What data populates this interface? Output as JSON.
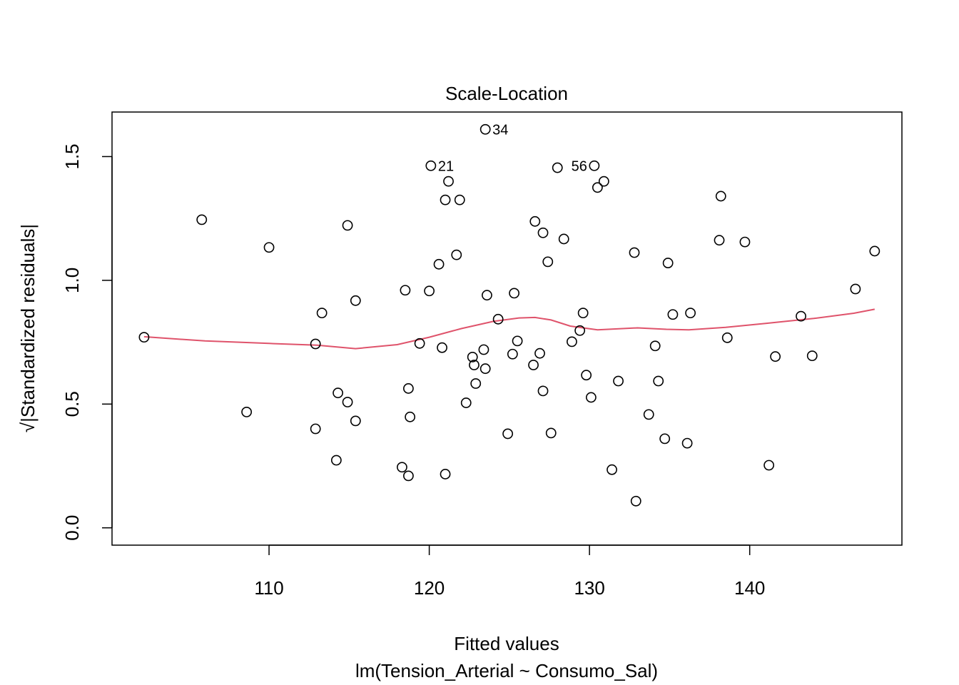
{
  "chart_data": {
    "type": "scatter",
    "title": "Scale-Location",
    "xlabel": "Fitted values",
    "xlabel_sub": "lm(Tension_Arterial ~ Consumo_Sal)",
    "ylabel": "√|Standardized residuals|",
    "xlim": [
      100.2,
      149.5
    ],
    "ylim": [
      -0.07,
      1.68
    ],
    "x_ticks": [
      110,
      120,
      130,
      140
    ],
    "x_tick_labels": [
      "110",
      "120",
      "130",
      "140"
    ],
    "y_ticks": [
      0.0,
      0.5,
      1.0,
      1.5
    ],
    "y_tick_labels": [
      "0.0",
      "0.5",
      "1.0",
      "1.5"
    ],
    "grid": false,
    "colors": {
      "points": "#000000",
      "smooth": "#DF536B",
      "frame": "#000000"
    },
    "points": [
      {
        "x": 102.2,
        "y": 0.77
      },
      {
        "x": 105.8,
        "y": 1.245
      },
      {
        "x": 108.6,
        "y": 0.468
      },
      {
        "x": 110.0,
        "y": 1.133
      },
      {
        "x": 112.9,
        "y": 0.743
      },
      {
        "x": 112.9,
        "y": 0.4
      },
      {
        "x": 113.3,
        "y": 0.868
      },
      {
        "x": 114.2,
        "y": 0.273
      },
      {
        "x": 114.3,
        "y": 0.545
      },
      {
        "x": 114.9,
        "y": 0.508
      },
      {
        "x": 114.9,
        "y": 1.222
      },
      {
        "x": 115.4,
        "y": 0.918
      },
      {
        "x": 115.4,
        "y": 0.432
      },
      {
        "x": 118.3,
        "y": 0.245
      },
      {
        "x": 118.5,
        "y": 0.96
      },
      {
        "x": 118.7,
        "y": 0.563
      },
      {
        "x": 118.7,
        "y": 0.21
      },
      {
        "x": 118.8,
        "y": 0.448
      },
      {
        "x": 119.4,
        "y": 0.745
      },
      {
        "x": 120.0,
        "y": 0.957
      },
      {
        "x": 120.1,
        "y": 1.463,
        "label": "21"
      },
      {
        "x": 120.6,
        "y": 1.065
      },
      {
        "x": 120.8,
        "y": 0.728
      },
      {
        "x": 121.0,
        "y": 1.325
      },
      {
        "x": 121.0,
        "y": 0.217
      },
      {
        "x": 121.2,
        "y": 1.4
      },
      {
        "x": 121.7,
        "y": 1.103
      },
      {
        "x": 121.9,
        "y": 1.325
      },
      {
        "x": 122.3,
        "y": 0.505
      },
      {
        "x": 122.7,
        "y": 0.69
      },
      {
        "x": 122.8,
        "y": 0.658
      },
      {
        "x": 122.9,
        "y": 0.583
      },
      {
        "x": 123.4,
        "y": 0.72
      },
      {
        "x": 123.5,
        "y": 1.61,
        "label": "34"
      },
      {
        "x": 123.5,
        "y": 0.643
      },
      {
        "x": 123.6,
        "y": 0.94
      },
      {
        "x": 124.3,
        "y": 0.843
      },
      {
        "x": 124.9,
        "y": 0.38
      },
      {
        "x": 125.2,
        "y": 0.702
      },
      {
        "x": 125.3,
        "y": 0.948
      },
      {
        "x": 125.5,
        "y": 0.755
      },
      {
        "x": 126.5,
        "y": 0.658
      },
      {
        "x": 126.6,
        "y": 1.238
      },
      {
        "x": 126.9,
        "y": 0.705
      },
      {
        "x": 127.1,
        "y": 1.192
      },
      {
        "x": 127.1,
        "y": 0.553
      },
      {
        "x": 127.4,
        "y": 1.075
      },
      {
        "x": 127.6,
        "y": 0.383
      },
      {
        "x": 128.0,
        "y": 1.455
      },
      {
        "x": 128.4,
        "y": 1.167
      },
      {
        "x": 128.9,
        "y": 0.752
      },
      {
        "x": 129.4,
        "y": 0.797
      },
      {
        "x": 129.6,
        "y": 0.868
      },
      {
        "x": 129.8,
        "y": 0.617
      },
      {
        "x": 130.1,
        "y": 0.527
      },
      {
        "x": 130.3,
        "y": 1.463,
        "label": "56"
      },
      {
        "x": 130.5,
        "y": 1.375
      },
      {
        "x": 130.9,
        "y": 1.4
      },
      {
        "x": 131.4,
        "y": 0.235
      },
      {
        "x": 131.8,
        "y": 0.593
      },
      {
        "x": 132.8,
        "y": 1.112
      },
      {
        "x": 132.9,
        "y": 0.108
      },
      {
        "x": 133.7,
        "y": 0.458
      },
      {
        "x": 134.1,
        "y": 0.735
      },
      {
        "x": 134.3,
        "y": 0.593
      },
      {
        "x": 134.7,
        "y": 0.36
      },
      {
        "x": 134.9,
        "y": 1.07
      },
      {
        "x": 135.2,
        "y": 0.862
      },
      {
        "x": 136.1,
        "y": 0.342
      },
      {
        "x": 136.3,
        "y": 0.868
      },
      {
        "x": 138.1,
        "y": 1.162
      },
      {
        "x": 138.2,
        "y": 1.34
      },
      {
        "x": 138.6,
        "y": 0.768
      },
      {
        "x": 139.7,
        "y": 1.155
      },
      {
        "x": 141.2,
        "y": 0.253
      },
      {
        "x": 141.6,
        "y": 0.692
      },
      {
        "x": 143.2,
        "y": 0.855
      },
      {
        "x": 143.9,
        "y": 0.695
      },
      {
        "x": 146.6,
        "y": 0.965
      },
      {
        "x": 147.8,
        "y": 1.118
      }
    ],
    "smooth_line": [
      {
        "x": 102.2,
        "y": 0.772
      },
      {
        "x": 106.0,
        "y": 0.755
      },
      {
        "x": 110.0,
        "y": 0.745
      },
      {
        "x": 113.0,
        "y": 0.738
      },
      {
        "x": 115.4,
        "y": 0.724
      },
      {
        "x": 118.0,
        "y": 0.74
      },
      {
        "x": 120.0,
        "y": 0.77
      },
      {
        "x": 122.0,
        "y": 0.805
      },
      {
        "x": 124.0,
        "y": 0.834
      },
      {
        "x": 125.6,
        "y": 0.848
      },
      {
        "x": 126.6,
        "y": 0.85
      },
      {
        "x": 127.6,
        "y": 0.84
      },
      {
        "x": 128.8,
        "y": 0.815
      },
      {
        "x": 130.5,
        "y": 0.8
      },
      {
        "x": 133.0,
        "y": 0.808
      },
      {
        "x": 134.8,
        "y": 0.802
      },
      {
        "x": 136.2,
        "y": 0.8
      },
      {
        "x": 138.5,
        "y": 0.81
      },
      {
        "x": 141.0,
        "y": 0.826
      },
      {
        "x": 144.0,
        "y": 0.846
      },
      {
        "x": 146.5,
        "y": 0.867
      },
      {
        "x": 147.8,
        "y": 0.883
      }
    ]
  }
}
